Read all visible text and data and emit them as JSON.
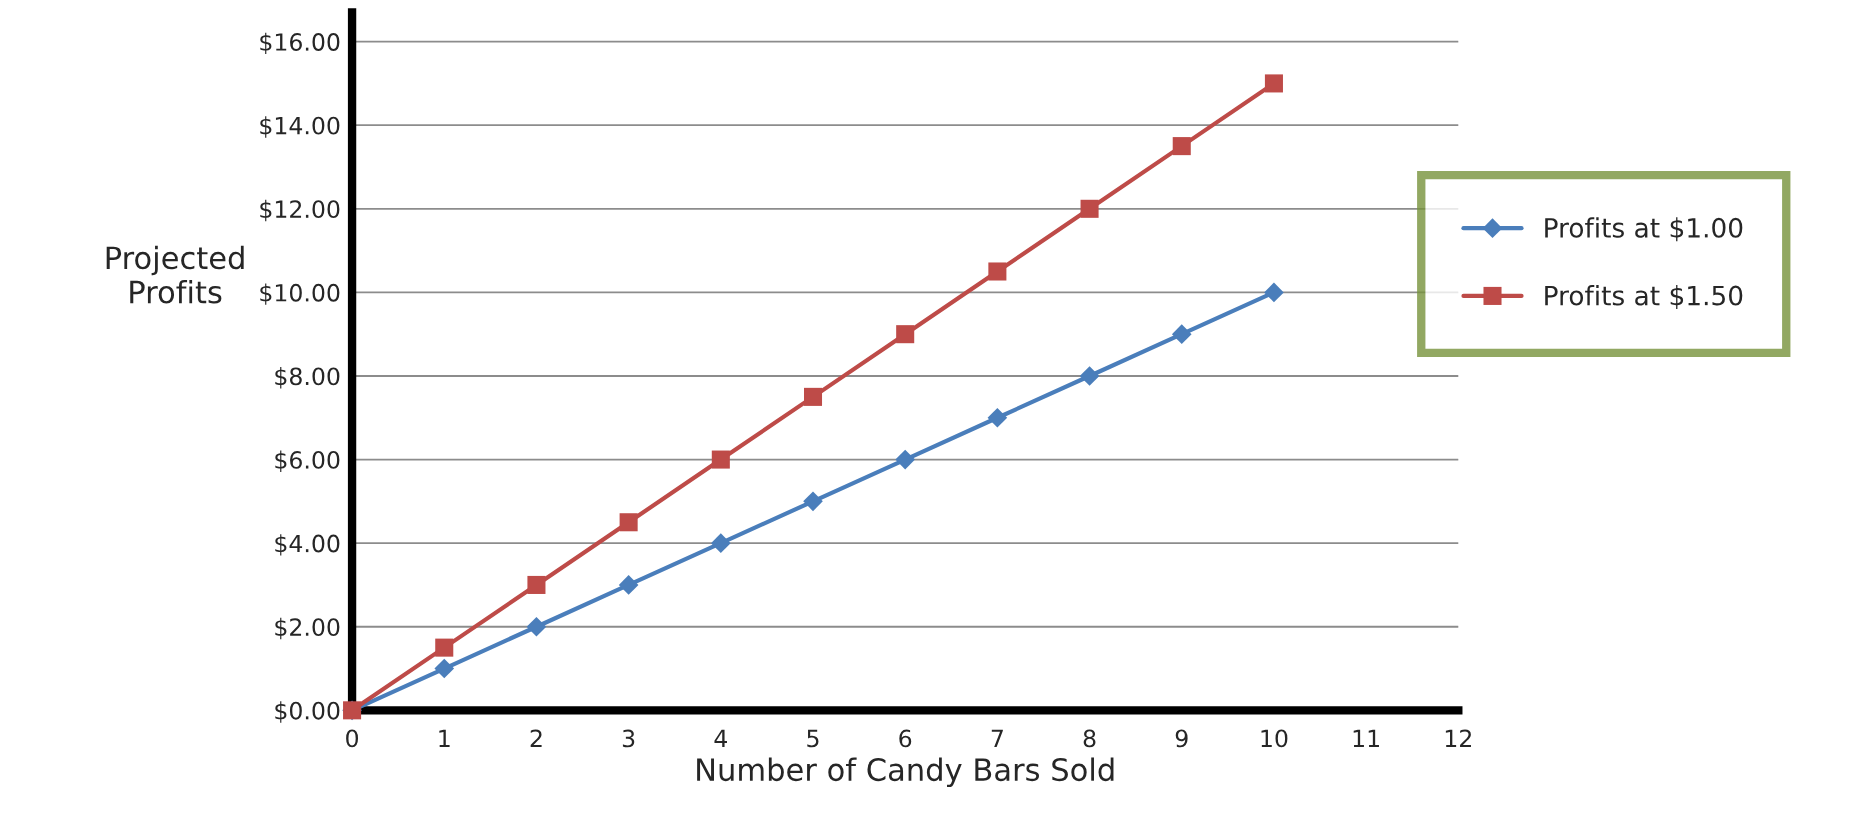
{
  "chart_data": {
    "type": "line",
    "xlabel": "Number of Candy Bars Sold",
    "ylabel": "Projected\nProfits",
    "x": [
      0,
      1,
      2,
      3,
      4,
      5,
      6,
      7,
      8,
      9,
      10
    ],
    "series": [
      {
        "name": "Profits at $1.00",
        "color": "#4a7ebb",
        "marker": "diamond",
        "values": [
          0,
          1,
          2,
          3,
          4,
          5,
          6,
          7,
          8,
          9,
          10
        ]
      },
      {
        "name": "Profits at $1.50",
        "color": "#be4b48",
        "marker": "square",
        "values": [
          0,
          1.5,
          3,
          4.5,
          6,
          7.5,
          9,
          10.5,
          12,
          13.5,
          15
        ]
      }
    ],
    "xlim": [
      0,
      12
    ],
    "xticks": [
      0,
      1,
      2,
      3,
      4,
      5,
      6,
      7,
      8,
      9,
      10,
      11,
      12
    ],
    "ylim": [
      0,
      16.7
    ],
    "yticks": [
      {
        "value": 0,
        "label": "$0.00"
      },
      {
        "value": 2,
        "label": "$2.00"
      },
      {
        "value": 4,
        "label": "$4.00"
      },
      {
        "value": 6,
        "label": "$6.00"
      },
      {
        "value": 8,
        "label": "$8.00"
      },
      {
        "value": 10,
        "label": "$10.00"
      },
      {
        "value": 12,
        "label": "$12.00"
      },
      {
        "value": 14,
        "label": "$14.00"
      },
      {
        "value": 16,
        "label": "$16.00"
      }
    ],
    "grid": "y",
    "legend": "right",
    "line_style": "solid"
  }
}
